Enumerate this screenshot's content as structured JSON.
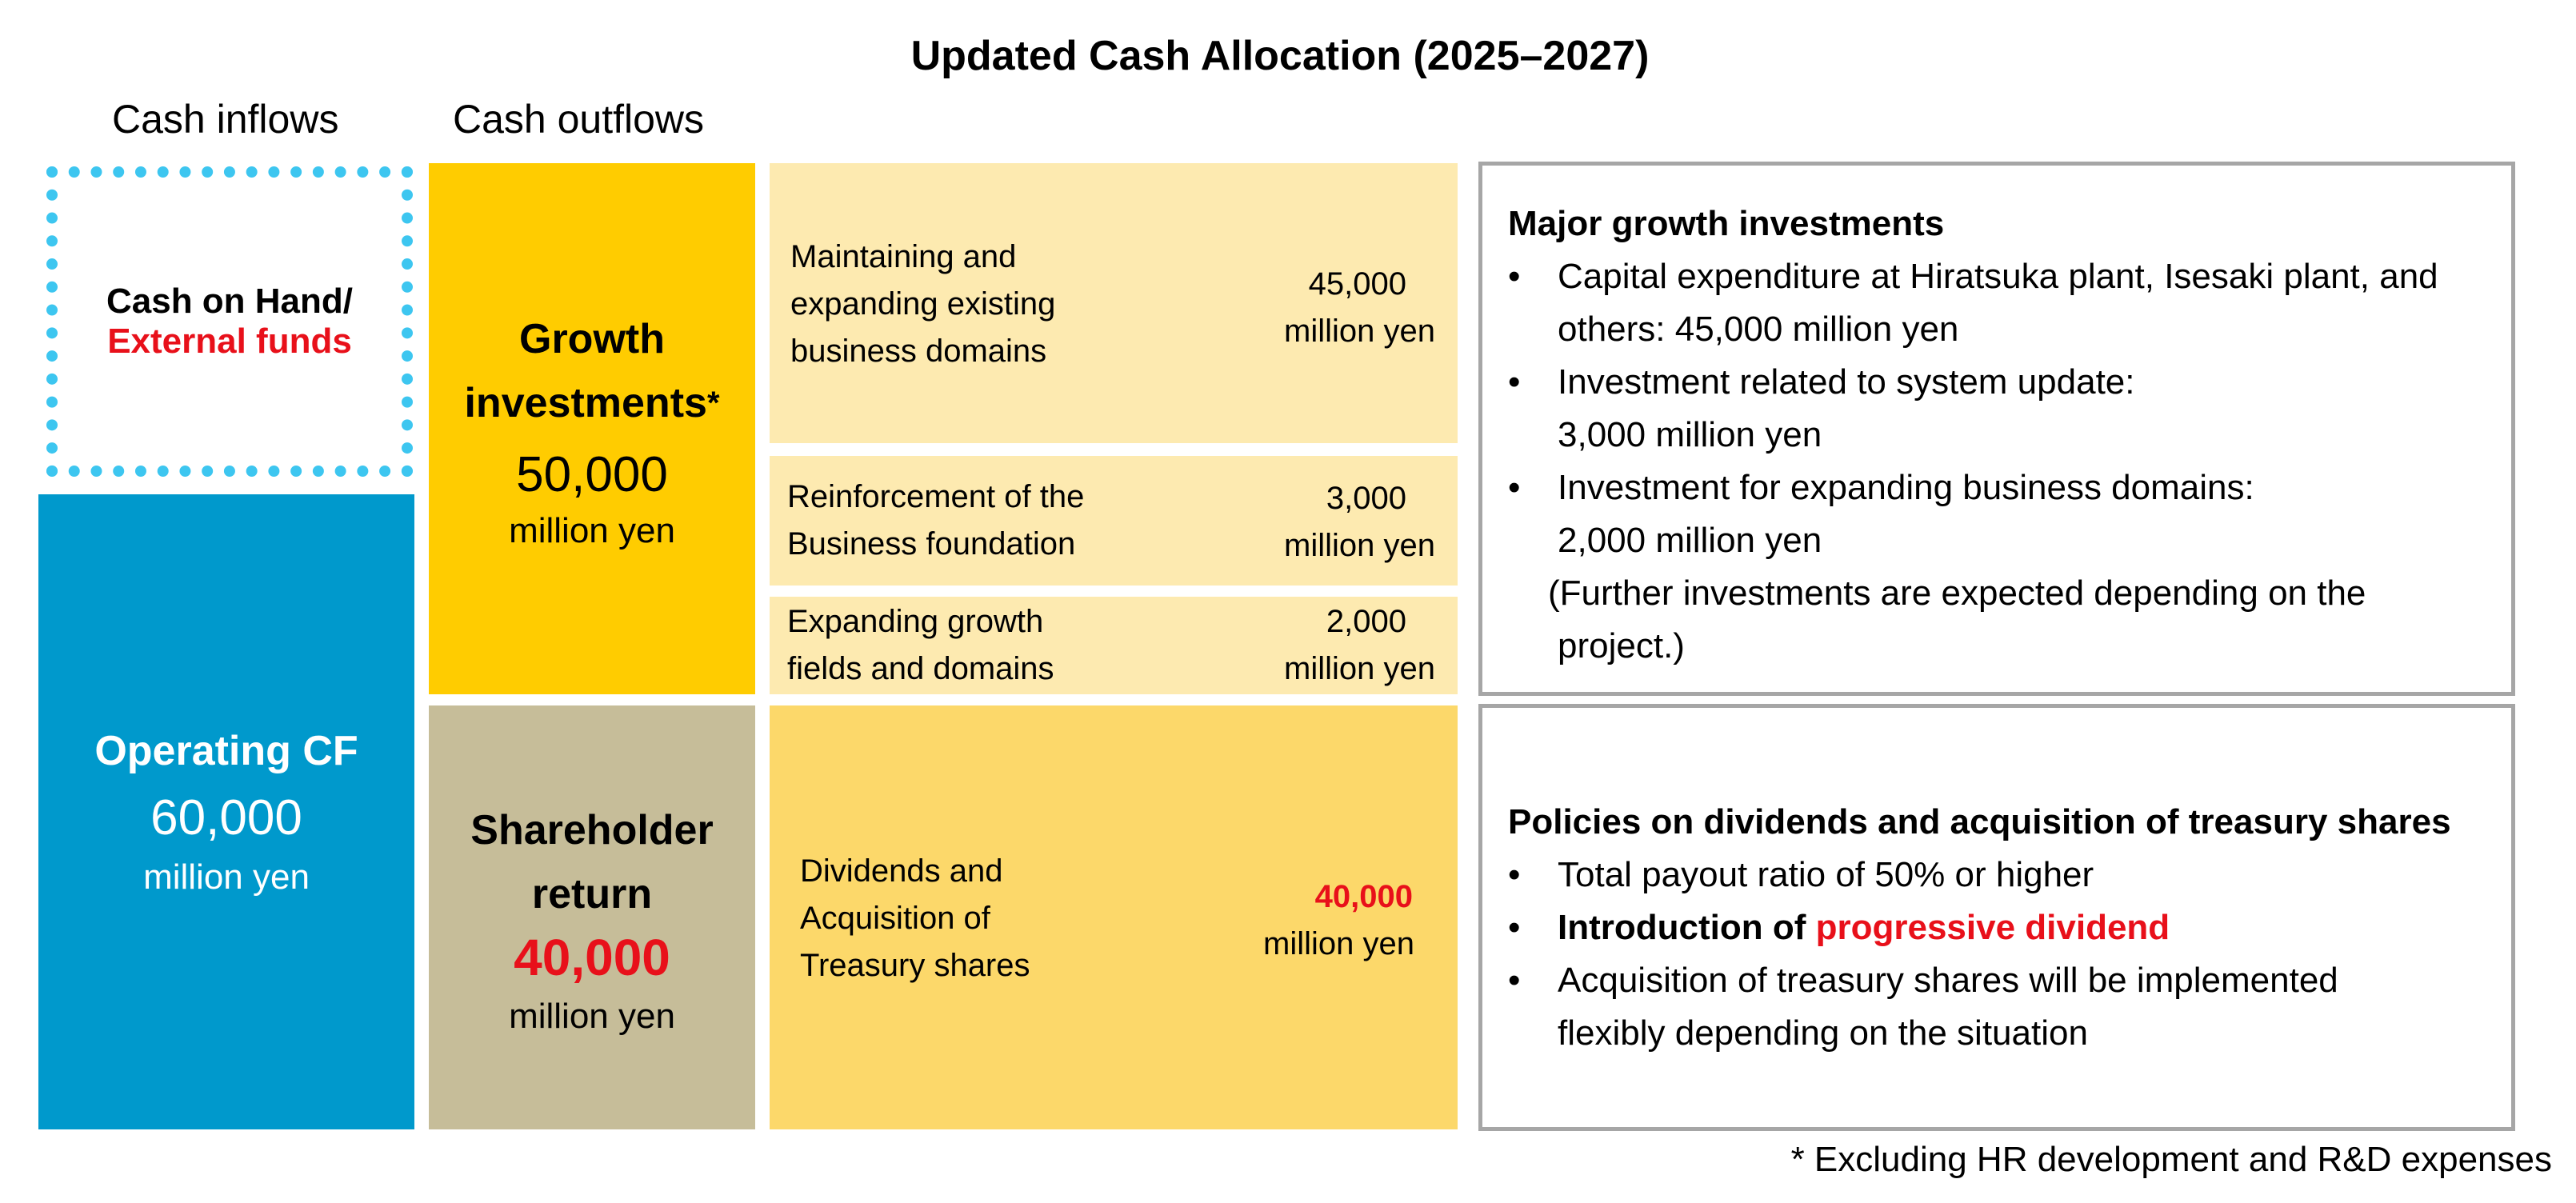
{
  "title": "Updated Cash Allocation (2025–2027)",
  "headers": {
    "inflows": "Cash inflows",
    "outflows": "Cash outflows"
  },
  "inflows": {
    "cash_on_hand": {
      "line1": "Cash on Hand/",
      "line2": "External funds"
    },
    "operating_cf": {
      "title": "Operating CF",
      "value": "60,000",
      "unit": "million yen"
    }
  },
  "outflows": {
    "growth": {
      "title_line1": "Growth",
      "title_line2": "investments",
      "asterisk": "*",
      "value": "50,000",
      "unit": "million yen"
    },
    "shareholder": {
      "title_line1": "Shareholder",
      "title_line2": "return",
      "value": "40,000",
      "unit": "million yen"
    }
  },
  "breakdown": [
    {
      "label": [
        "Maintaining and",
        "expanding existing",
        "business domains"
      ],
      "amount": "45,000",
      "unit": "million yen"
    },
    {
      "label": [
        "Reinforcement of the",
        "Business foundation"
      ],
      "amount": "3,000",
      "unit": "million yen"
    },
    {
      "label": [
        "Expanding growth",
        "fields and domains"
      ],
      "amount": "2,000",
      "unit": "million yen"
    }
  ],
  "dividends": {
    "label": [
      "Dividends and",
      "Acquisition of",
      "Treasury shares"
    ],
    "amount": "40,000",
    "unit": "million yen"
  },
  "panel_growth": {
    "heading": "Major growth investments",
    "items": [
      [
        "Capital expenditure at Hiratsuka plant, Isesaki plant, and",
        "others: 45,000 million yen"
      ],
      [
        "Investment related to system update:",
        "3,000 million yen"
      ],
      [
        "Investment for expanding business domains:",
        "2,000 million yen"
      ]
    ],
    "note": [
      "(Further investments are expected depending on the",
      "project.)"
    ]
  },
  "panel_dividend": {
    "heading": "Policies on dividends and acquisition of treasury shares",
    "item1": "Total payout ratio of 50% or higher",
    "item2_prefix": "Introduction of ",
    "item2_highlight": "progressive dividend",
    "item3": [
      "Acquisition of treasury shares will be implemented",
      "flexibly depending on the situation"
    ]
  },
  "footnote": "* Excluding HR development and R&D expenses",
  "colors": {
    "growth": "#ffcc00",
    "shareholder": "#c6bd99",
    "operating_cf": "#0099cc",
    "cash_on_hand_border": "#3dc6f0",
    "breakdown_light": "#fdeab0",
    "dividends": "#fcd86a",
    "highlight_red": "#e8101a",
    "panel_border": "#a6a6a6"
  }
}
